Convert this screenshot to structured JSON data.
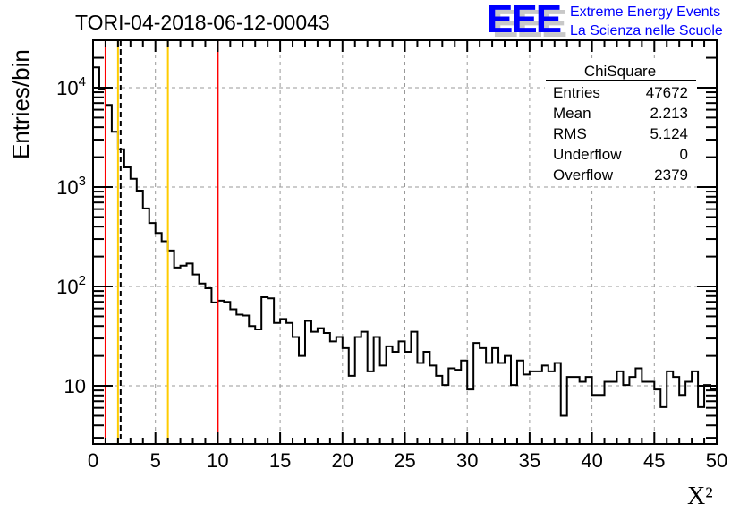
{
  "chart_data": {
    "type": "bar",
    "subtype": "step-histogram",
    "title": "TORI-04-2018-06-12-00043",
    "xlabel": "X²",
    "ylabel": "Entries/bin",
    "xlim": [
      0,
      50
    ],
    "ylim": [
      2.6,
      30000
    ],
    "yscale": "log",
    "bin_width": 0.5,
    "grid": true,
    "xticks": [
      0,
      5,
      10,
      15,
      20,
      25,
      30,
      35,
      40,
      45,
      50
    ],
    "xtick_labels": [
      "0",
      "5",
      "10",
      "15",
      "20",
      "25",
      "30",
      "35",
      "40",
      "45",
      "50"
    ],
    "yticks": [
      10,
      100,
      1000,
      10000
    ],
    "ytick_labels": [
      {
        "base": "10",
        "exp": ""
      },
      {
        "base": "10",
        "exp": "2"
      },
      {
        "base": "10",
        "exp": "3"
      },
      {
        "base": "10",
        "exp": "4"
      }
    ],
    "values": [
      16000,
      9800,
      6700,
      3600,
      2400,
      1580,
      1210,
      920,
      610,
      435,
      345,
      285,
      230,
      155,
      162,
      170,
      132,
      107,
      96,
      69,
      72,
      70,
      59,
      52,
      51,
      40,
      37,
      78,
      76,
      43,
      47,
      43,
      31,
      20,
      45,
      35,
      38,
      34,
      28,
      31,
      24,
      12.6,
      31,
      35,
      14,
      31,
      16,
      25,
      22,
      28,
      22,
      35,
      17,
      22,
      16,
      12.6,
      10.2,
      15,
      14.5,
      18,
      9.2,
      27,
      24,
      17,
      24,
      17,
      20,
      10.2,
      18,
      13,
      14,
      14,
      16,
      14,
      17,
      5,
      12.3,
      12.3,
      11,
      12.3,
      8.1,
      8.1,
      11,
      11,
      14,
      10.2,
      12.3,
      15,
      11,
      11,
      9.2,
      6.1,
      14,
      12.3,
      8.1,
      11,
      14,
      6.1,
      10.2,
      9.3
    ],
    "vertical_lines": [
      {
        "x": 1,
        "color": "#ff0000",
        "style": "solid"
      },
      {
        "x": 2,
        "color": "#ffcc00",
        "style": "solid"
      },
      {
        "x": 2.213,
        "color": "#000000",
        "style": "dashed"
      },
      {
        "x": 6,
        "color": "#ffcc00",
        "style": "solid"
      },
      {
        "x": 10,
        "color": "#ff0000",
        "style": "solid"
      }
    ],
    "stats": {
      "title": "ChiSquare",
      "rows": [
        {
          "label": "Entries",
          "value": "47672"
        },
        {
          "label": "Mean",
          "value": "2.213"
        },
        {
          "label": "RMS",
          "value": "5.124"
        },
        {
          "label": "Underflow",
          "value": "0"
        },
        {
          "label": "Overflow",
          "value": "2379"
        }
      ]
    }
  },
  "logo": {
    "mark": "EEE",
    "line1": "Extreme Energy Events",
    "line2": "La Scienza nelle Scuole",
    "color": "#0000ff"
  }
}
